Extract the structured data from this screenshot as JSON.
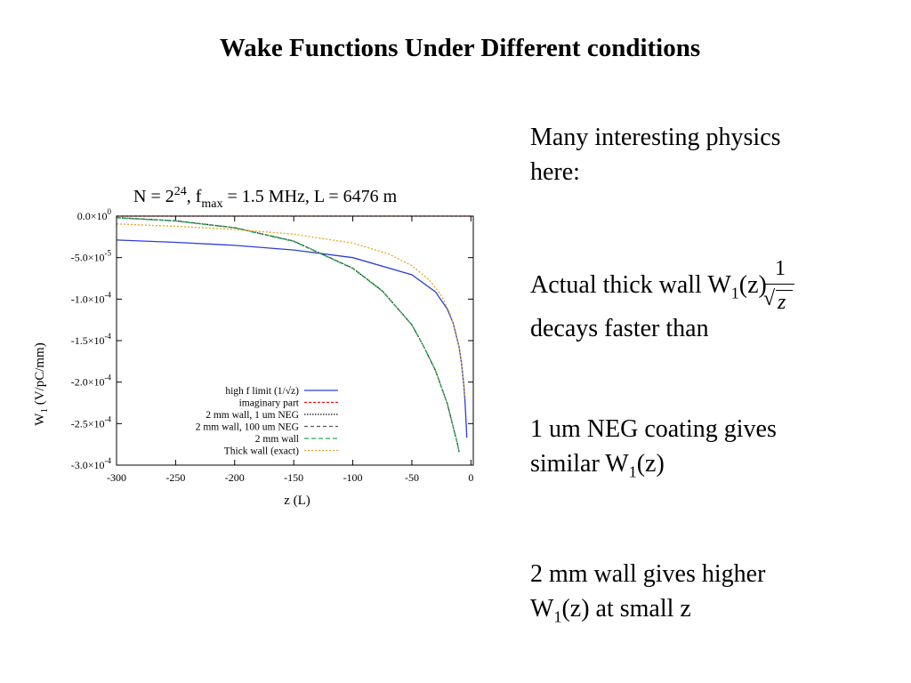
{
  "slide": {
    "title": "Wake Functions Under Different conditions"
  },
  "bullets": [
    {
      "lines": [
        "Many interesting physics",
        "here:"
      ]
    },
    {
      "line1_pre": "Actual thick wall W",
      "line1_sub": "1",
      "line1_post": "(z)",
      "line2": "decays faster than"
    },
    {
      "line1": "1 um NEG coating gives",
      "line2_pre": "similar W",
      "line2_sub": "1",
      "line2_post": "(z)"
    },
    {
      "line1": "2 mm wall gives higher",
      "line2_pre": "W",
      "line2_sub": "1",
      "line2_post": "(z) at small z"
    }
  ],
  "fraction": {
    "numerator": "1",
    "radicand": "z"
  },
  "chart_data": {
    "type": "line",
    "title": {
      "pre": "N = 2",
      "sup": "24",
      "mid": ", f",
      "sub": "max",
      "post": " = 1.5 MHz, L = 6476 m"
    },
    "xlabel": "z (L)",
    "ylabel": {
      "pre": "W",
      "sub": "1",
      "post": " (V/pC/mm)"
    },
    "xlim": [
      -300,
      2
    ],
    "ylim": [
      -0.0003,
      0
    ],
    "xticks": [
      {
        "value": -300,
        "label": "-300"
      },
      {
        "value": -250,
        "label": "-250"
      },
      {
        "value": -200,
        "label": "-200"
      },
      {
        "value": -150,
        "label": "-150"
      },
      {
        "value": -100,
        "label": "-100"
      },
      {
        "value": -50,
        "label": "-50"
      },
      {
        "value": 0,
        "label": "0"
      }
    ],
    "yticks": [
      {
        "value": 0,
        "mant": "0.0×10",
        "exp": "0"
      },
      {
        "value": -5e-05,
        "mant": "-5.0×10",
        "exp": "-5"
      },
      {
        "value": -0.0001,
        "mant": "-1.0×10",
        "exp": "-4"
      },
      {
        "value": -0.00015,
        "mant": "-1.5×10",
        "exp": "-4"
      },
      {
        "value": -0.0002,
        "mant": "-2.0×10",
        "exp": "-4"
      },
      {
        "value": -0.00025,
        "mant": "-2.5×10",
        "exp": "-4"
      },
      {
        "value": -0.0003,
        "mant": "-3.0×10",
        "exp": "-4"
      }
    ],
    "legend_position": "bottom-right",
    "series": [
      {
        "name": "high f limit (1/√z)",
        "color": "#2b3fd6",
        "dash": "none",
        "x": [
          -300,
          -250,
          -200,
          -150,
          -100,
          -50,
          -30,
          -20,
          -15,
          -10,
          -8,
          -6,
          -5,
          -4,
          -3.5
        ],
        "y": [
          -2.88e-05,
          -3.16e-05,
          -3.53e-05,
          -4.08e-05,
          -5e-05,
          -7.07e-05,
          -9.13e-05,
          -0.000112,
          -0.000129,
          -0.000158,
          -0.000177,
          -0.000204,
          -0.000224,
          -0.00025,
          -0.000267
        ]
      },
      {
        "name": "imaginary part",
        "color": "#e3120b",
        "dash": "3,2",
        "x": [
          -300,
          1.5
        ],
        "y": [
          0,
          0
        ]
      },
      {
        "name": "2 mm wall, 1 um NEG",
        "color": "#111111",
        "dash": "1.5,1.5",
        "x": [
          -300,
          -250,
          -200,
          -150,
          -100,
          -75,
          -50,
          -40,
          -30,
          -20,
          -15,
          -12,
          -10
        ],
        "y": [
          -1.8e-06,
          -5.7e-06,
          -1.39e-05,
          -3.01e-05,
          -6.28e-05,
          -9.01e-05,
          -0.000131,
          -0.000157,
          -0.000186,
          -0.000226,
          -0.000254,
          -0.000271,
          -0.000284
        ]
      },
      {
        "name": "2 mm wall, 100 um NEG",
        "color": "#555555",
        "dash": "4,3",
        "x": [
          -300,
          -250,
          -200,
          -150,
          -100,
          -75,
          -50,
          -40,
          -30,
          -20,
          -15,
          -12,
          -10
        ],
        "y": [
          -1.8e-06,
          -5.7e-06,
          -1.39e-05,
          -3.01e-05,
          -6.28e-05,
          -9.01e-05,
          -0.000131,
          -0.000157,
          -0.000186,
          -0.000226,
          -0.000254,
          -0.000271,
          -0.000284
        ]
      },
      {
        "name": "2 mm wall",
        "color": "#22b14c",
        "dash": "5,3",
        "x": [
          -300,
          -250,
          -200,
          -150,
          -100,
          -75,
          -50,
          -40,
          -30,
          -20,
          -15,
          -12,
          -10
        ],
        "y": [
          -2e-06,
          -6e-06,
          -1.43e-05,
          -3.05e-05,
          -6.32e-05,
          -9.05e-05,
          -0.000131,
          -0.000157,
          -0.000186,
          -0.000226,
          -0.000254,
          -0.000271,
          -0.000284
        ]
      },
      {
        "name": "Thick wall (exact)",
        "color": "#e8a41f",
        "dash": "2,2",
        "x": [
          -300,
          -250,
          -200,
          -150,
          -100,
          -70,
          -50,
          -35,
          -25,
          -18,
          -13,
          -10,
          -8,
          -6,
          -5
        ],
        "y": [
          -9.4e-06,
          -1.23e-05,
          -1.61e-05,
          -2.17e-05,
          -3.26e-05,
          -4.54e-05,
          -5.97e-05,
          -7.73e-05,
          -9.57e-05,
          -0.000116,
          -0.000139,
          -0.000159,
          -0.000177,
          -0.000202,
          -0.000219
        ]
      }
    ]
  }
}
